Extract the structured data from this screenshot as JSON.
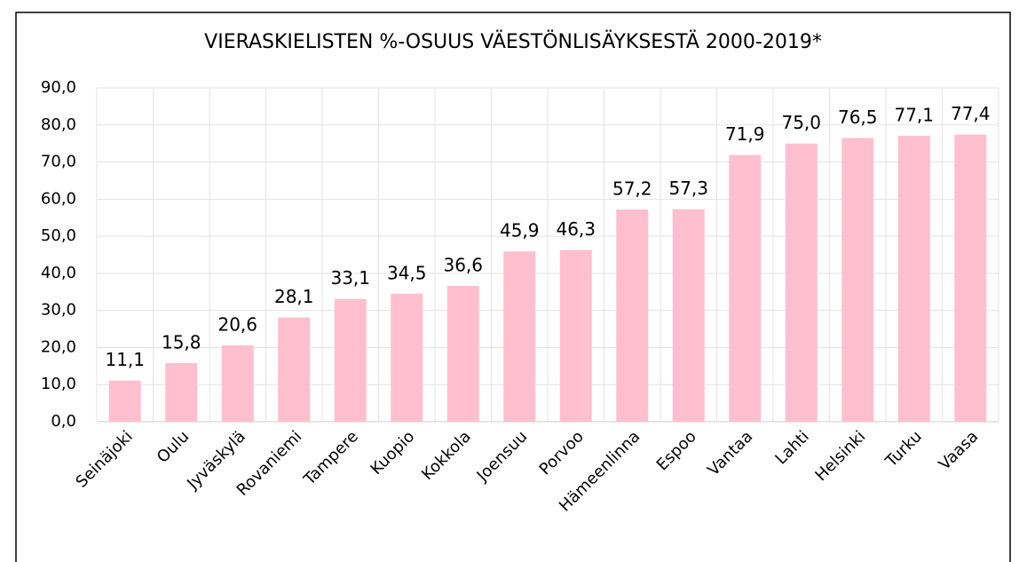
{
  "chart_data": {
    "type": "bar",
    "title": "VIERASKIELISTEN %-OSUUS VÄESTÖNLISÄYKSESTÄ 2000-2019*",
    "categories": [
      "Seinäjoki",
      "Oulu",
      "Jyväskylä",
      "Rovaniemi",
      "Tampere",
      "Kuopio",
      "Kokkola",
      "Joensuu",
      "Porvoo",
      "Hämeenlinna",
      "Espoo",
      "Vantaa",
      "Lahti",
      "Helsinki",
      "Turku",
      "Vaasa"
    ],
    "values": [
      11.1,
      15.8,
      20.6,
      28.1,
      33.1,
      34.5,
      36.6,
      45.9,
      46.3,
      57.2,
      57.3,
      71.9,
      75.0,
      76.5,
      77.1,
      77.4
    ],
    "value_labels": [
      "11,1",
      "15,8",
      "20,6",
      "28,1",
      "33,1",
      "34,5",
      "36,6",
      "45,9",
      "46,3",
      "57,2",
      "57,3",
      "71,9",
      "75,0",
      "76,5",
      "77,1",
      "77,4"
    ],
    "color": "#ffbfcf",
    "ylim": [
      0,
      90
    ],
    "yticks": [
      {
        "value": 0,
        "label": "0,0"
      },
      {
        "value": 10,
        "label": "10,0"
      },
      {
        "value": 20,
        "label": "20,0"
      },
      {
        "value": 30,
        "label": "30,0"
      },
      {
        "value": 40,
        "label": "40,0"
      },
      {
        "value": 50,
        "label": "50,0"
      },
      {
        "value": 60,
        "label": "60,0"
      },
      {
        "value": 70,
        "label": "70,0"
      },
      {
        "value": 80,
        "label": "80,0"
      },
      {
        "value": 90,
        "label": "90,0"
      }
    ],
    "grid": true
  }
}
